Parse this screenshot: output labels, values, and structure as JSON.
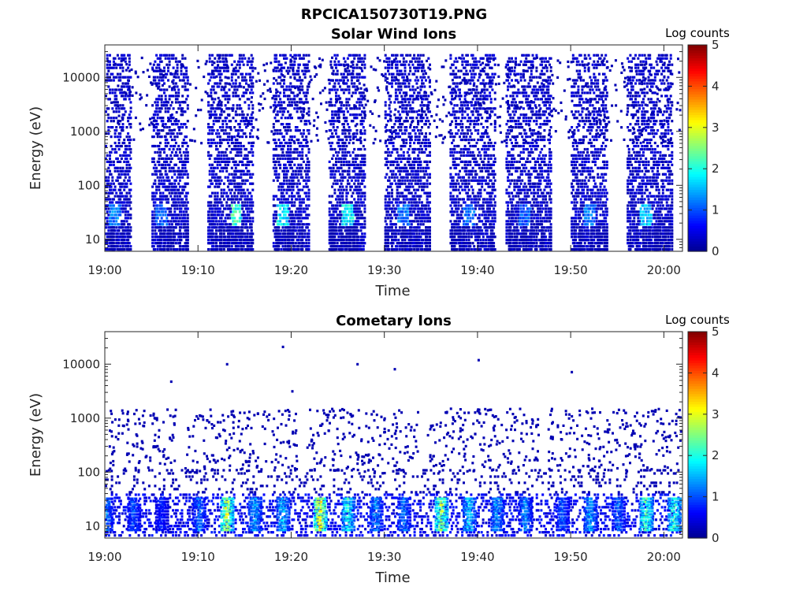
{
  "figure_title": "RPCICA150730T19.PNG",
  "colormap": [
    "#00008f",
    "#0000ff",
    "#0080ff",
    "#00ffff",
    "#80ff80",
    "#ffff00",
    "#ff8000",
    "#ff0000",
    "#800000"
  ],
  "chart_data": [
    {
      "type": "heatmap",
      "title": "Solar Wind Ions",
      "xlabel": "Time",
      "ylabel": "Energy (eV)",
      "x_ticks": [
        "19:00",
        "19:10",
        "19:20",
        "19:30",
        "19:40",
        "19:50",
        "20:00"
      ],
      "x_range": [
        "19:00",
        "20:02"
      ],
      "y_scale": "log",
      "y_ticks": [
        "10",
        "100",
        "1000",
        "10000"
      ],
      "ylim": [
        6,
        40000
      ],
      "colorbar": {
        "label": "Log counts",
        "ticks": [
          "0",
          "1",
          "2",
          "3",
          "4",
          "5"
        ],
        "range": [
          0,
          5
        ]
      },
      "bursts": [
        {
          "start": "19:00",
          "end": "19:02",
          "peak": "19:01",
          "peak_log_counts": 1.5
        },
        {
          "start": "19:05",
          "end": "19:08",
          "peak": "19:06",
          "peak_log_counts": 1.3
        },
        {
          "start": "19:11",
          "end": "19:15",
          "peak": "19:14",
          "peak_log_counts": 2.5
        },
        {
          "start": "19:18",
          "end": "19:21",
          "peak": "19:19",
          "peak_log_counts": 2.2
        },
        {
          "start": "19:24",
          "end": "19:27",
          "peak": "19:26",
          "peak_log_counts": 2.2
        },
        {
          "start": "19:30",
          "end": "19:34",
          "peak": "19:32",
          "peak_log_counts": 1.5
        },
        {
          "start": "19:37",
          "end": "19:41",
          "peak": "19:39",
          "peak_log_counts": 1.4
        },
        {
          "start": "19:43",
          "end": "19:47",
          "peak": "19:45",
          "peak_log_counts": 1.3
        },
        {
          "start": "19:50",
          "end": "19:53",
          "peak": "19:52",
          "peak_log_counts": 1.5
        },
        {
          "start": "19:56",
          "end": "20:00",
          "peak": "19:58",
          "peak_log_counts": 2.0
        }
      ]
    },
    {
      "type": "heatmap",
      "title": "Cometary Ions",
      "xlabel": "Time",
      "ylabel": "Energy (eV)",
      "x_ticks": [
        "19:00",
        "19:10",
        "19:20",
        "19:30",
        "19:40",
        "19:50",
        "20:00"
      ],
      "x_range": [
        "19:00",
        "20:02"
      ],
      "y_scale": "log",
      "y_ticks": [
        "10",
        "100",
        "1000",
        "10000"
      ],
      "ylim": [
        6,
        40000
      ],
      "colorbar": {
        "label": "Log counts",
        "ticks": [
          "0",
          "1",
          "2",
          "3",
          "4",
          "5"
        ],
        "range": [
          0,
          5
        ]
      },
      "band_energy_eV": [
        10,
        40
      ],
      "enhancements": [
        {
          "time": "19:00",
          "log_counts": 1.6
        },
        {
          "time": "19:03",
          "log_counts": 1.3
        },
        {
          "time": "19:06",
          "log_counts": 1.0
        },
        {
          "time": "19:10",
          "log_counts": 1.5
        },
        {
          "time": "19:13",
          "log_counts": 3.4
        },
        {
          "time": "19:16",
          "log_counts": 1.8
        },
        {
          "time": "19:19",
          "log_counts": 2.0
        },
        {
          "time": "19:23",
          "log_counts": 3.7
        },
        {
          "time": "19:26",
          "log_counts": 2.4
        },
        {
          "time": "19:29",
          "log_counts": 1.6
        },
        {
          "time": "19:32",
          "log_counts": 1.5
        },
        {
          "time": "19:36",
          "log_counts": 3.2
        },
        {
          "time": "19:39",
          "log_counts": 2.0
        },
        {
          "time": "19:42",
          "log_counts": 1.8
        },
        {
          "time": "19:45",
          "log_counts": 1.6
        },
        {
          "time": "19:49",
          "log_counts": 1.3
        },
        {
          "time": "19:52",
          "log_counts": 1.8
        },
        {
          "time": "19:55",
          "log_counts": 1.4
        },
        {
          "time": "19:58",
          "log_counts": 2.8
        },
        {
          "time": "20:01",
          "log_counts": 2.6
        }
      ],
      "sparse_high_energy_points": [
        {
          "time": "19:07",
          "energy_eV": 5000
        },
        {
          "time": "19:13",
          "energy_eV": 10500
        },
        {
          "time": "19:19",
          "energy_eV": 22000
        },
        {
          "time": "19:20",
          "energy_eV": 3300
        },
        {
          "time": "19:27",
          "energy_eV": 10500
        },
        {
          "time": "19:31",
          "energy_eV": 8500
        },
        {
          "time": "19:40",
          "energy_eV": 12500
        },
        {
          "time": "19:50",
          "energy_eV": 7500
        }
      ]
    }
  ]
}
